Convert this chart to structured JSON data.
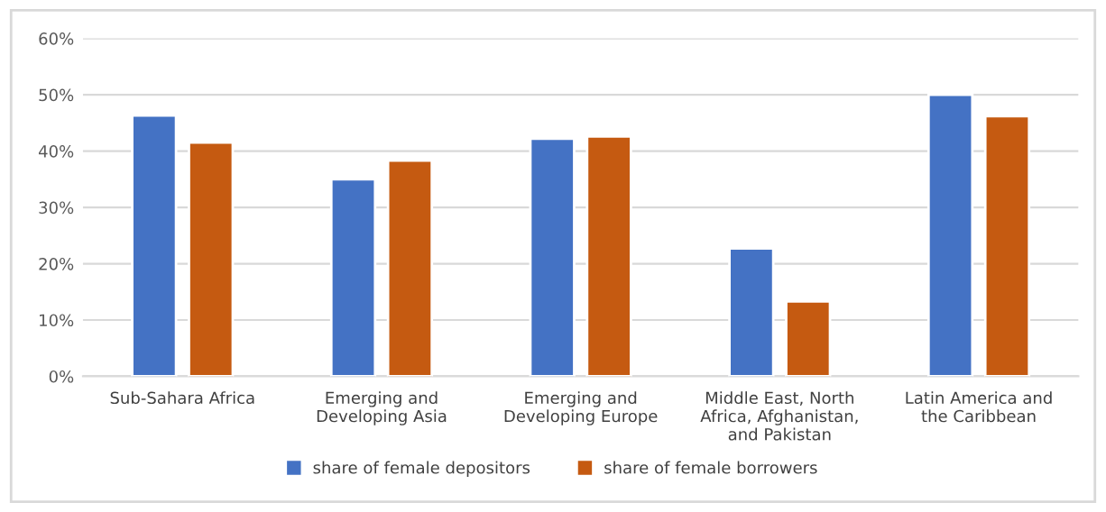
{
  "chart_data": {
    "type": "bar",
    "categories": [
      "Sub-Sahara Africa",
      "Emerging and Developing Asia",
      "Emerging and Developing Europe",
      "Middle East, North Africa, Afghanistan, and Pakistan",
      "Latin America and the Caribbean"
    ],
    "series": [
      {
        "name": "share of female depositors",
        "color": "#4472c4",
        "values": [
          46.3,
          35.0,
          42.2,
          22.7,
          50.0
        ]
      },
      {
        "name": "share of female borrowers",
        "color": "#c55a11",
        "values": [
          41.5,
          38.3,
          42.6,
          13.3,
          46.2
        ]
      }
    ],
    "ylim": [
      0,
      60
    ],
    "yticks": [
      {
        "value": 0,
        "label": "0%"
      },
      {
        "value": 10,
        "label": "10%"
      },
      {
        "value": 20,
        "label": "20%"
      },
      {
        "value": 30,
        "label": "30%"
      },
      {
        "value": 40,
        "label": "40%"
      },
      {
        "value": 50,
        "label": "50%"
      },
      {
        "value": 60,
        "label": "60%"
      }
    ],
    "grid": "y",
    "legend": "bottom"
  }
}
